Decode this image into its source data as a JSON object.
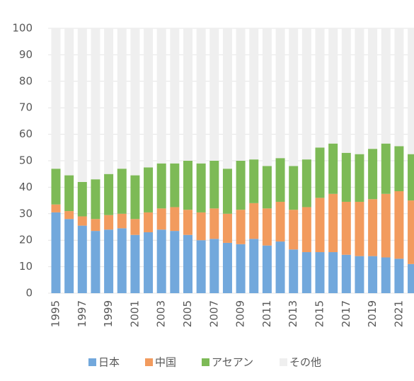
{
  "chart_data": {
    "type": "stacked_bar",
    "categories": [
      "1995",
      null,
      "1997",
      null,
      "1999",
      null,
      "2001",
      null,
      "2003",
      null,
      "2005",
      null,
      "2007",
      null,
      "2009",
      null,
      "2011",
      null,
      "2013",
      null,
      "2015",
      null,
      "2017",
      null,
      "2019",
      null,
      "2021",
      null
    ],
    "series": [
      {
        "name": "日本",
        "color": "#72a8dc",
        "values": [
          30.5,
          28,
          25.5,
          23.5,
          24,
          24.5,
          22,
          23,
          24,
          23.5,
          22,
          20,
          20.5,
          19,
          18.5,
          20.5,
          18,
          19.5,
          16.5,
          15.5,
          15.5,
          15.5,
          14.5,
          14,
          14,
          13.5,
          13,
          11
        ]
      },
      {
        "name": "中国",
        "color": "#f29b5e",
        "values": [
          3,
          3,
          3.5,
          4.5,
          5.5,
          5.5,
          6,
          7.5,
          8,
          9,
          9.5,
          10.5,
          11.5,
          11,
          13,
          13.5,
          14,
          15,
          15,
          17,
          20.5,
          22,
          20,
          20.5,
          21.5,
          24,
          25.5,
          24
        ]
      },
      {
        "name": "アセアン",
        "color": "#7dba56",
        "values": [
          13.5,
          13.5,
          13,
          15,
          15.5,
          17,
          16.5,
          17,
          17,
          16.5,
          18.5,
          18.5,
          18,
          17,
          18.5,
          16.5,
          16,
          16.5,
          16.5,
          18,
          19,
          19,
          18.5,
          18,
          19,
          19,
          17,
          17.5
        ]
      },
      {
        "name": "その他",
        "color": "#efefef",
        "values": [
          53,
          55.5,
          58,
          57,
          55,
          53,
          55.5,
          52.5,
          51,
          51,
          50,
          51,
          50,
          53,
          50,
          49.5,
          52,
          49,
          52,
          49.5,
          45,
          43.5,
          47,
          47.5,
          45.5,
          43.5,
          44.5,
          47.5
        ]
      }
    ],
    "ylim": [
      0,
      100
    ],
    "yticks": [
      0,
      10,
      20,
      30,
      40,
      50,
      60,
      70,
      80,
      90,
      100
    ],
    "grid": true,
    "legend": "bottom"
  }
}
